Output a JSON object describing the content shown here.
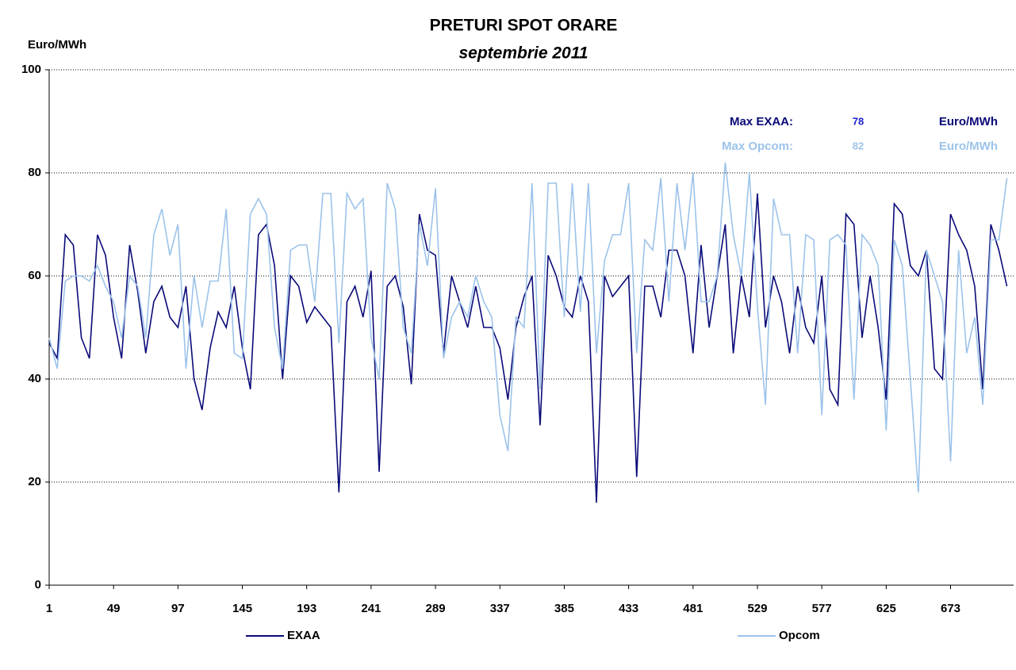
{
  "chart_data": {
    "type": "line",
    "title": "PRETURI SPOT ORARE",
    "subtitle": "septembrie 2011",
    "y_label": "Euro/MWh",
    "x": [
      1,
      7,
      13,
      19,
      25,
      31,
      37,
      43,
      49,
      55,
      61,
      67,
      73,
      79,
      85,
      91,
      97,
      103,
      109,
      115,
      121,
      127,
      133,
      139,
      145,
      151,
      157,
      163,
      169,
      175,
      181,
      187,
      193,
      199,
      205,
      211,
      217,
      223,
      229,
      235,
      241,
      247,
      253,
      259,
      265,
      271,
      277,
      283,
      289,
      295,
      301,
      307,
      313,
      319,
      325,
      331,
      337,
      343,
      349,
      355,
      361,
      367,
      373,
      379,
      385,
      391,
      397,
      403,
      409,
      415,
      421,
      427,
      433,
      439,
      445,
      451,
      457,
      463,
      469,
      475,
      481,
      487,
      493,
      499,
      505,
      511,
      517,
      523,
      529,
      535,
      541,
      547,
      553,
      559,
      565,
      571,
      577,
      583,
      589,
      595,
      601,
      607,
      613,
      619,
      625,
      631,
      637,
      643,
      649,
      655,
      661,
      667,
      673,
      679,
      685,
      691,
      697,
      703,
      709,
      715
    ],
    "series": [
      {
        "name": "EXAA",
        "color": "#0a0a78",
        "values": [
          47,
          44,
          68,
          66,
          48,
          44,
          68,
          64,
          52,
          44,
          66,
          57,
          45,
          55,
          58,
          52,
          50,
          58,
          40,
          34,
          46,
          53,
          50,
          58,
          46,
          38,
          68,
          70,
          62,
          40,
          60,
          58,
          51,
          54,
          52,
          50,
          18,
          55,
          58,
          52,
          61,
          22,
          58,
          60,
          54,
          39,
          72,
          65,
          64,
          45,
          60,
          55,
          50,
          58,
          50,
          50,
          46,
          36,
          50,
          56,
          60,
          31,
          64,
          60,
          54,
          52,
          60,
          55,
          16,
          60,
          56,
          58,
          60,
          21,
          58,
          58,
          52,
          65,
          65,
          60,
          45,
          66,
          50,
          60,
          70,
          45,
          60,
          52,
          76,
          50,
          60,
          55,
          45,
          58,
          50,
          47,
          60,
          38,
          35,
          72,
          70,
          48,
          60,
          50,
          36,
          74,
          72,
          62,
          60,
          65,
          42,
          40,
          72,
          68,
          65,
          58,
          38,
          70,
          65,
          58
        ]
      },
      {
        "name": "Opcom",
        "color": "#9cc3ea",
        "values": [
          48,
          42,
          59,
          60,
          60,
          59,
          62,
          58,
          55,
          48,
          60,
          58,
          48,
          68,
          73,
          64,
          70,
          42,
          60,
          50,
          59,
          59,
          73,
          45,
          44,
          72,
          75,
          72,
          50,
          42,
          65,
          66,
          66,
          55,
          76,
          76,
          47,
          76,
          73,
          75,
          48,
          40,
          78,
          73,
          50,
          45,
          70,
          62,
          77,
          44,
          52,
          55,
          52,
          60,
          55,
          52,
          33,
          26,
          52,
          50,
          78,
          38,
          78,
          78,
          52,
          78,
          53,
          78,
          45,
          63,
          68,
          68,
          78,
          45,
          67,
          65,
          79,
          55,
          78,
          65,
          80,
          55,
          55,
          60,
          82,
          68,
          60,
          80,
          54,
          35,
          75,
          68,
          68,
          45,
          68,
          67,
          33,
          67,
          68,
          66,
          36,
          68,
          66,
          62,
          30,
          67,
          62,
          40,
          18,
          65,
          60,
          55,
          24,
          65,
          45,
          52,
          35,
          67,
          67,
          79
        ]
      }
    ],
    "xlim": [
      1,
      720
    ],
    "xticks": [
      1,
      49,
      97,
      145,
      193,
      241,
      289,
      337,
      385,
      433,
      481,
      529,
      577,
      625,
      673
    ],
    "ylim": [
      0,
      100
    ],
    "yticks": [
      0,
      20,
      40,
      60,
      80,
      100
    ],
    "grid": true,
    "annotations": [
      {
        "label": "Max EXAA:",
        "value": 78,
        "unit": "Euro/MWh",
        "color": "#0a0a78",
        "value_color": "#1f1fd0"
      },
      {
        "label": "Max Opcom:",
        "value": 82,
        "unit": "Euro/MWh",
        "color": "#9cc3ea",
        "value_color": "#9cc3ea"
      }
    ]
  }
}
